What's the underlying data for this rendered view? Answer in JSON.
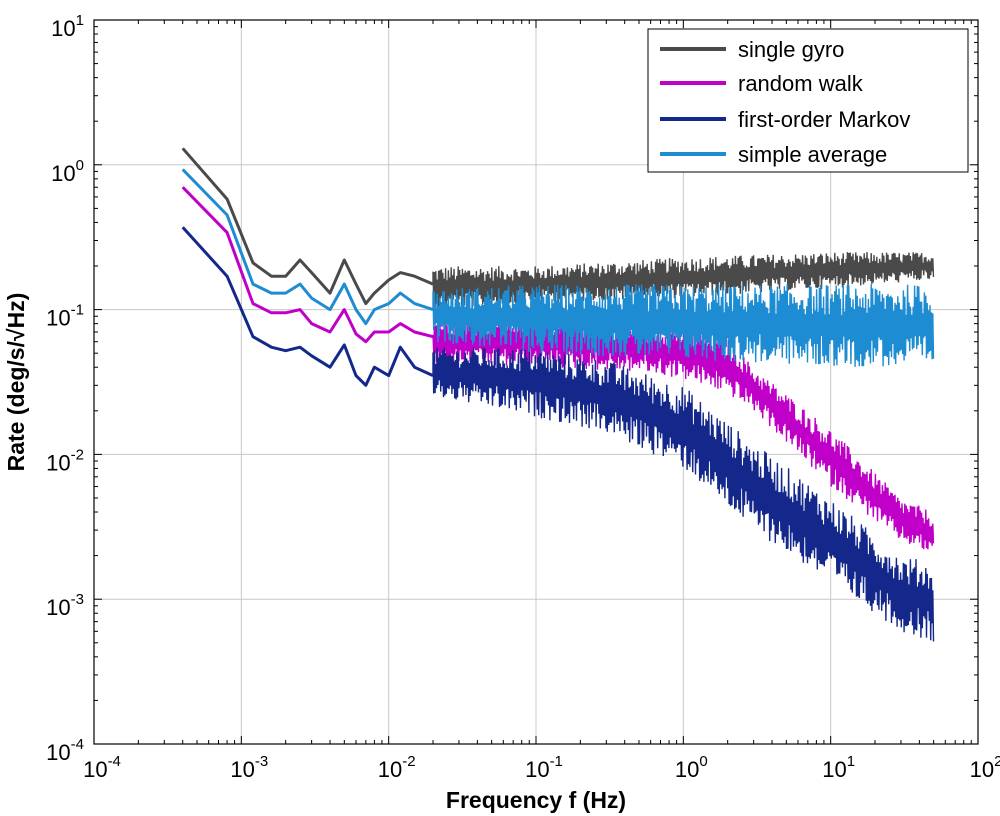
{
  "chart_data": {
    "type": "line",
    "xscale": "log",
    "yscale": "log",
    "xlim": [
      0.0001,
      100
    ],
    "ylim": [
      0.0001,
      10
    ],
    "grid": true,
    "xlabel": "Frequency f (Hz)",
    "ylabel": "Rate (deg/s/√Hz)",
    "xticks": [
      {
        "base": "10",
        "exp": "-4"
      },
      {
        "base": "10",
        "exp": "-3"
      },
      {
        "base": "10",
        "exp": "-2"
      },
      {
        "base": "10",
        "exp": "-1"
      },
      {
        "base": "10",
        "exp": "0"
      },
      {
        "base": "10",
        "exp": "1"
      },
      {
        "base": "10",
        "exp": "2"
      }
    ],
    "yticks": [
      {
        "base": "10",
        "exp": "-4"
      },
      {
        "base": "10",
        "exp": "-3"
      },
      {
        "base": "10",
        "exp": "-2"
      },
      {
        "base": "10",
        "exp": "-1"
      },
      {
        "base": "10",
        "exp": "0"
      },
      {
        "base": "10",
        "exp": "1"
      }
    ],
    "legend_position": "top-right",
    "series": [
      {
        "name": "single gyro",
        "color": "#4a4a4a",
        "x": [
          0.0004,
          0.0008,
          0.0012,
          0.0016,
          0.002,
          0.0025,
          0.003,
          0.004,
          0.005,
          0.006,
          0.007,
          0.008,
          0.01,
          0.012,
          0.015,
          0.02
        ],
        "y": [
          1.3,
          0.58,
          0.21,
          0.17,
          0.17,
          0.22,
          0.18,
          0.13,
          0.22,
          0.15,
          0.11,
          0.13,
          0.16,
          0.18,
          0.17,
          0.15
        ],
        "noise_from": 0.02,
        "noise_to": 50,
        "noise_hi": [
          [
            0.02,
            0.2
          ],
          [
            0.1,
            0.2
          ],
          [
            1,
            0.23
          ],
          [
            10,
            0.25
          ],
          [
            50,
            0.25
          ]
        ],
        "noise_lo": [
          [
            0.02,
            0.1
          ],
          [
            0.1,
            0.11
          ],
          [
            1,
            0.12
          ],
          [
            10,
            0.14
          ],
          [
            50,
            0.16
          ]
        ]
      },
      {
        "name": "random walk",
        "color": "#c000c8",
        "x": [
          0.0004,
          0.0008,
          0.0012,
          0.0016,
          0.002,
          0.0025,
          0.003,
          0.004,
          0.005,
          0.006,
          0.007,
          0.008,
          0.01,
          0.012,
          0.015,
          0.02
        ],
        "y": [
          0.7,
          0.34,
          0.11,
          0.095,
          0.095,
          0.1,
          0.08,
          0.07,
          0.1,
          0.068,
          0.06,
          0.07,
          0.07,
          0.08,
          0.07,
          0.065
        ],
        "noise_from": 0.02,
        "noise_to": 50,
        "noise_hi": [
          [
            0.02,
            0.09
          ],
          [
            0.1,
            0.09
          ],
          [
            0.5,
            0.08
          ],
          [
            1,
            0.075
          ],
          [
            2,
            0.065
          ],
          [
            3,
            0.04
          ],
          [
            10,
            0.015
          ],
          [
            30,
            0.005
          ],
          [
            50,
            0.004
          ]
        ],
        "noise_lo": [
          [
            0.02,
            0.04
          ],
          [
            0.1,
            0.04
          ],
          [
            0.5,
            0.037
          ],
          [
            1,
            0.033
          ],
          [
            2,
            0.026
          ],
          [
            3,
            0.02
          ],
          [
            10,
            0.006
          ],
          [
            30,
            0.0025
          ],
          [
            50,
            0.002
          ]
        ]
      },
      {
        "name": "first-order Markov",
        "color": "#14288c",
        "x": [
          0.0004,
          0.0008,
          0.0012,
          0.0016,
          0.002,
          0.0025,
          0.003,
          0.004,
          0.005,
          0.006,
          0.007,
          0.008,
          0.01,
          0.012,
          0.015,
          0.02
        ],
        "y": [
          0.37,
          0.17,
          0.065,
          0.055,
          0.052,
          0.055,
          0.048,
          0.04,
          0.057,
          0.035,
          0.03,
          0.04,
          0.035,
          0.055,
          0.04,
          0.035
        ],
        "noise_from": 0.02,
        "noise_to": 50,
        "noise_hi": [
          [
            0.02,
            0.055
          ],
          [
            0.1,
            0.055
          ],
          [
            0.3,
            0.045
          ],
          [
            1,
            0.03
          ],
          [
            3,
            0.012
          ],
          [
            10,
            0.005
          ],
          [
            30,
            0.002
          ],
          [
            50,
            0.0018
          ]
        ],
        "noise_lo": [
          [
            0.02,
            0.025
          ],
          [
            0.1,
            0.018
          ],
          [
            0.3,
            0.014
          ],
          [
            1,
            0.008
          ],
          [
            3,
            0.003
          ],
          [
            10,
            0.0013
          ],
          [
            30,
            0.0006
          ],
          [
            50,
            0.0005
          ]
        ]
      },
      {
        "name": "simple average",
        "color": "#1e8cd2",
        "x": [
          0.0004,
          0.0008,
          0.0012,
          0.0016,
          0.002,
          0.0025,
          0.003,
          0.004,
          0.005,
          0.006,
          0.007,
          0.008,
          0.01,
          0.012,
          0.015,
          0.02
        ],
        "y": [
          0.93,
          0.45,
          0.15,
          0.13,
          0.13,
          0.15,
          0.12,
          0.1,
          0.15,
          0.1,
          0.08,
          0.1,
          0.11,
          0.13,
          0.11,
          0.1
        ],
        "noise_from": 0.02,
        "noise_to": 50,
        "noise_hi": [
          [
            0.02,
            0.14
          ],
          [
            0.1,
            0.15
          ],
          [
            1,
            0.15
          ],
          [
            10,
            0.15
          ],
          [
            50,
            0.15
          ]
        ],
        "noise_lo": [
          [
            0.02,
            0.06
          ],
          [
            0.1,
            0.05
          ],
          [
            1,
            0.045
          ],
          [
            10,
            0.04
          ],
          [
            50,
            0.04
          ]
        ]
      }
    ]
  }
}
